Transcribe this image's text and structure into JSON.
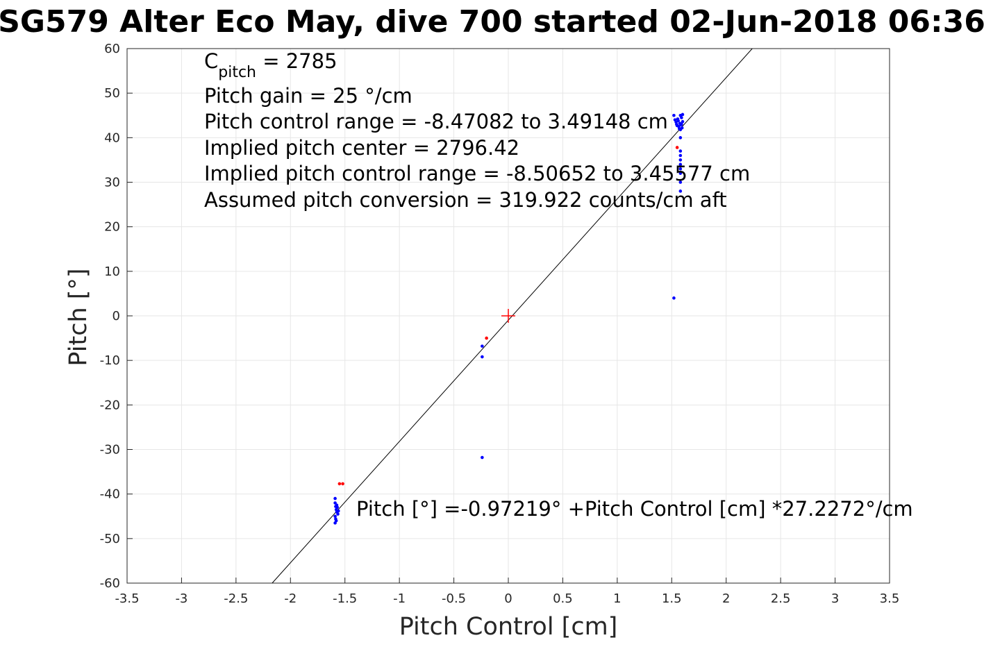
{
  "chart_data": {
    "type": "scatter",
    "title": "SG579 Alter Eco May, dive 700 started 02-Jun-2018 06:36",
    "xlabel": "Pitch Control [cm]",
    "ylabel": "Pitch [°]",
    "xlim": [
      -3.5,
      3.5
    ],
    "ylim": [
      -60,
      60
    ],
    "xticks": [
      -3.5,
      -3,
      -2.5,
      -2,
      -1.5,
      -1,
      -0.5,
      0,
      0.5,
      1,
      1.5,
      2,
      2.5,
      3,
      3.5
    ],
    "yticks": [
      -60,
      -50,
      -40,
      -30,
      -20,
      -10,
      0,
      10,
      20,
      30,
      40,
      50,
      60
    ],
    "grid": true,
    "legend": "none",
    "colors": {
      "good": "#0000ff",
      "flagged": "#ff0000",
      "fit": "#000000",
      "center": "#ff0000"
    },
    "fit_line": {
      "intercept": -0.97219,
      "slope": 27.2272
    },
    "center_marker": {
      "x": 0,
      "y": 0
    },
    "series": [
      {
        "color": "#0000ff",
        "points": [
          [
            1.52,
            45.0
          ],
          [
            1.53,
            44.0
          ],
          [
            1.54,
            43.5
          ],
          [
            1.545,
            43.0
          ],
          [
            1.55,
            42.7
          ],
          [
            1.555,
            44.2
          ],
          [
            1.56,
            43.8
          ],
          [
            1.565,
            42.5
          ],
          [
            1.57,
            42.0
          ],
          [
            1.575,
            43.2
          ],
          [
            1.58,
            41.8
          ],
          [
            1.585,
            42.9
          ],
          [
            1.59,
            44.5
          ],
          [
            1.59,
            43.0
          ],
          [
            1.595,
            42.2
          ],
          [
            1.6,
            45.2
          ],
          [
            1.6,
            43.6
          ],
          [
            1.58,
            45.0
          ],
          [
            1.58,
            37.0
          ],
          [
            1.58,
            36.0
          ],
          [
            1.58,
            35.0
          ],
          [
            1.58,
            34.0
          ],
          [
            1.58,
            33.0
          ],
          [
            1.58,
            32.0
          ],
          [
            1.58,
            30.0
          ],
          [
            1.58,
            28.0
          ],
          [
            1.58,
            40.0
          ],
          [
            1.52,
            4.0
          ],
          [
            -0.24,
            -6.8
          ],
          [
            -0.24,
            -9.2
          ],
          [
            -0.24,
            -31.8
          ],
          [
            -1.59,
            -41.0
          ],
          [
            -1.59,
            -42.0
          ],
          [
            -1.585,
            -42.8
          ],
          [
            -1.58,
            -43.5
          ],
          [
            -1.575,
            -44.0
          ],
          [
            -1.57,
            -43.0
          ],
          [
            -1.565,
            -44.5
          ],
          [
            -1.59,
            -45.0
          ],
          [
            -1.585,
            -45.6
          ],
          [
            -1.58,
            -46.0
          ],
          [
            -1.59,
            -46.5
          ],
          [
            -1.56,
            -43.8
          ],
          [
            -1.575,
            -42.5
          ]
        ]
      },
      {
        "color": "#ff0000",
        "points": [
          [
            -1.55,
            -37.7
          ],
          [
            -1.52,
            -37.7
          ],
          [
            -0.2,
            -5.0
          ],
          [
            1.55,
            37.8
          ]
        ]
      }
    ],
    "annotations": {
      "cpitch_main": "C",
      "cpitch_sub": "pitch",
      "cpitch_rest": " = 2785",
      "line2": "Pitch gain = 25 °/cm",
      "line3": "Pitch control range = -8.47082 to 3.49148 cm",
      "line4": "Implied pitch center = 2796.42",
      "line5": "Implied pitch control range = -8.50652 to 3.45577 cm",
      "line6": "Assumed pitch conversion = 319.922 counts/cm aft",
      "fit_label": "Pitch [°] =-0.97219° +Pitch Control [cm] *27.2272°/cm"
    }
  }
}
